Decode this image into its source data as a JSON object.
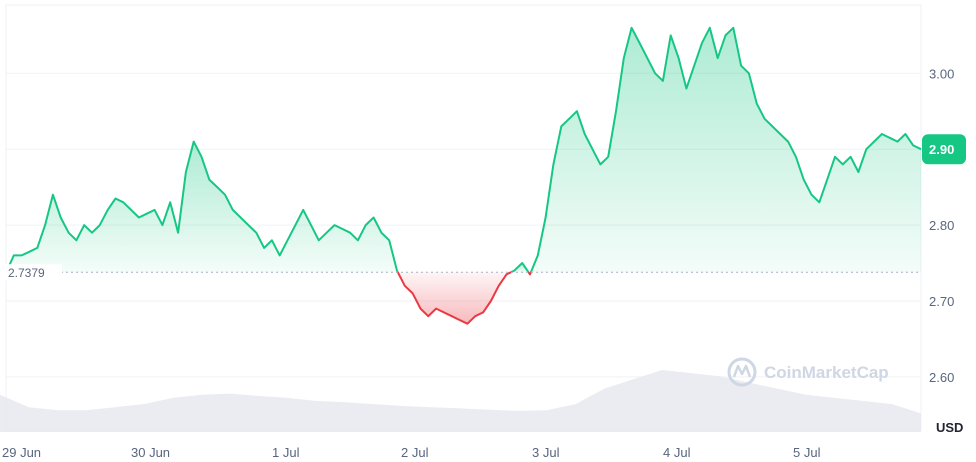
{
  "chart_data": {
    "type": "area",
    "x_labels": [
      "29 Jun",
      "30 Jun",
      "1 Jul",
      "2 Jul",
      "3 Jul",
      "4 Jul",
      "5 Jul"
    ],
    "y_ticks": [
      "2.60",
      "2.70",
      "2.80",
      "2.90",
      "3.00"
    ],
    "ylim": [
      2.53,
      3.09
    ],
    "unit": "USD",
    "baseline": {
      "value": 2.7379,
      "label": "2.7379"
    },
    "current_price": {
      "value": 2.9,
      "label": "2.90"
    },
    "grid": true,
    "colors": {
      "up": "#16c784",
      "down": "#ea3943",
      "up_fill": "#16c784",
      "down_fill": "#ea3943",
      "volume": "#e6e9ef"
    },
    "series": [
      {
        "values": [
          2.737,
          2.76,
          2.76,
          2.765,
          2.77,
          2.8,
          2.84,
          2.81,
          2.79,
          2.78,
          2.8,
          2.79,
          2.8,
          2.82,
          2.835,
          2.83,
          2.82,
          2.81,
          2.815,
          2.82,
          2.8,
          2.83,
          2.79,
          2.87,
          2.91,
          2.89,
          2.86,
          2.85,
          2.84,
          2.82,
          2.81,
          2.8,
          2.79,
          2.77,
          2.78,
          2.76,
          2.78,
          2.8,
          2.82,
          2.8,
          2.78,
          2.79,
          2.8,
          2.795,
          2.79,
          2.78,
          2.8,
          2.81,
          2.79,
          2.78,
          2.74,
          2.72,
          2.71,
          2.69,
          2.68,
          2.69,
          2.685,
          2.68,
          2.675,
          2.67,
          2.68,
          2.685,
          2.7,
          2.72,
          2.735,
          2.74,
          2.75,
          2.735,
          2.76,
          2.81,
          2.88,
          2.93,
          2.94,
          2.95,
          2.92,
          2.9,
          2.88,
          2.89,
          2.95,
          3.02,
          3.06,
          3.04,
          3.02,
          3.0,
          2.99,
          3.05,
          3.02,
          2.98,
          3.01,
          3.04,
          3.06,
          3.02,
          3.05,
          3.06,
          3.01,
          3.0,
          2.96,
          2.94,
          2.93,
          2.92,
          2.91,
          2.89,
          2.86,
          2.84,
          2.83,
          2.86,
          2.89,
          2.88,
          2.89,
          2.87,
          2.9,
          2.91,
          2.92,
          2.915,
          2.91,
          2.92,
          2.905,
          2.9
        ]
      }
    ],
    "volume": [
      0.6,
      0.4,
      0.35,
      0.35,
      0.4,
      0.45,
      0.55,
      0.6,
      0.62,
      0.58,
      0.55,
      0.5,
      0.48,
      0.45,
      0.42,
      0.4,
      0.38,
      0.36,
      0.34,
      0.35,
      0.45,
      0.7,
      0.85,
      1.0,
      0.95,
      0.9,
      0.8,
      0.7,
      0.6,
      0.55,
      0.5,
      0.45,
      0.3
    ]
  },
  "watermark": {
    "text": "CoinMarketCap",
    "icon": "coinmarketcap-logo-icon"
  }
}
